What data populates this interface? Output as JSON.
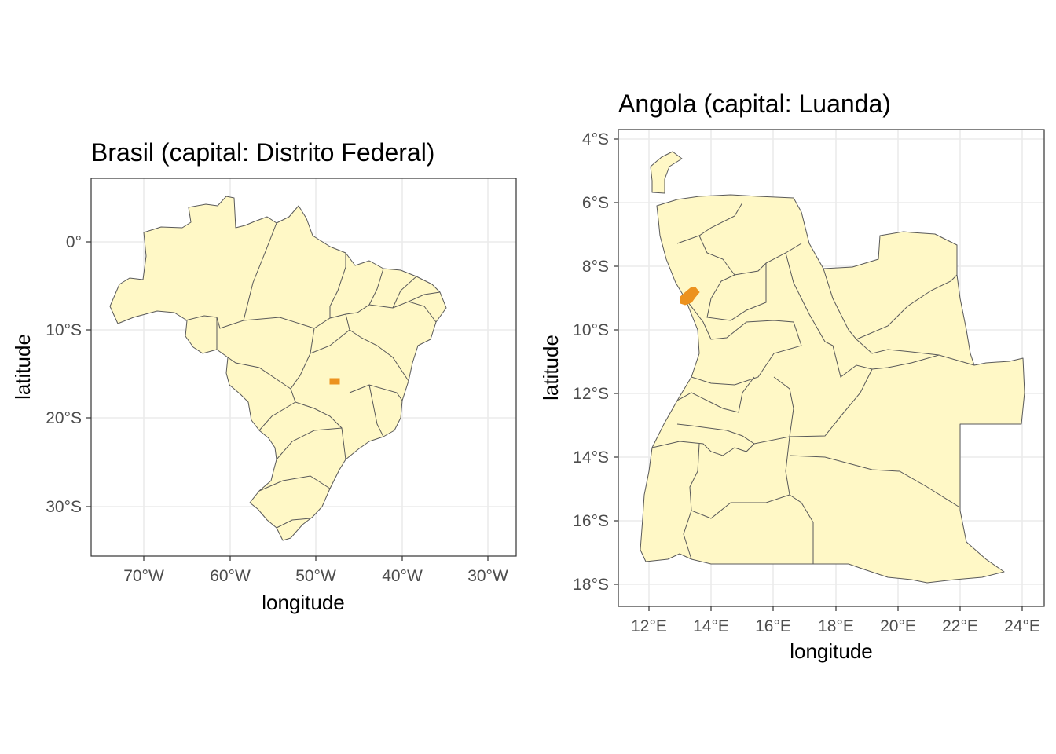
{
  "colors": {
    "region_fill": "#fff8c6",
    "capital_fill": "#ec921f",
    "border": "#595959",
    "grid": "#ebebeb"
  },
  "maps": [
    {
      "id": "brasil",
      "title": "Brasil (capital: Distrito Federal)",
      "xlabel": "longitude",
      "ylabel": "latitude",
      "xlim": [
        -76,
        -27
      ],
      "ylim": [
        -35.5,
        7.5
      ],
      "x_ticks": [
        {
          "value": -70,
          "label": "70°W"
        },
        {
          "value": -60,
          "label": "60°W"
        },
        {
          "value": -50,
          "label": "50°W"
        },
        {
          "value": -40,
          "label": "40°W"
        },
        {
          "value": -30,
          "label": "30°W"
        }
      ],
      "y_ticks": [
        {
          "value": 0,
          "label": "0°"
        },
        {
          "value": -10,
          "label": "10°S"
        },
        {
          "value": -20,
          "label": "20°S"
        },
        {
          "value": -30,
          "label": "30°S"
        }
      ],
      "capital": "Distrito Federal"
    },
    {
      "id": "angola",
      "title": "Angola (capital: Luanda)",
      "xlabel": "longitude",
      "ylabel": "latitude",
      "xlim": [
        11.2,
        24.6
      ],
      "ylim": [
        -18.6,
        -3.6
      ],
      "x_ticks": [
        {
          "value": 12,
          "label": "12°E"
        },
        {
          "value": 14,
          "label": "14°E"
        },
        {
          "value": 16,
          "label": "16°E"
        },
        {
          "value": 18,
          "label": "18°E"
        },
        {
          "value": 20,
          "label": "20°E"
        },
        {
          "value": 22,
          "label": "22°E"
        },
        {
          "value": 24,
          "label": "24°E"
        }
      ],
      "y_ticks": [
        {
          "value": -4,
          "label": "4°S"
        },
        {
          "value": -6,
          "label": "6°S"
        },
        {
          "value": -8,
          "label": "8°S"
        },
        {
          "value": -10,
          "label": "10°S"
        },
        {
          "value": -12,
          "label": "12°S"
        },
        {
          "value": -14,
          "label": "14°S"
        },
        {
          "value": -16,
          "label": "16°S"
        },
        {
          "value": -18,
          "label": "18°S"
        }
      ],
      "capital": "Luanda"
    }
  ]
}
